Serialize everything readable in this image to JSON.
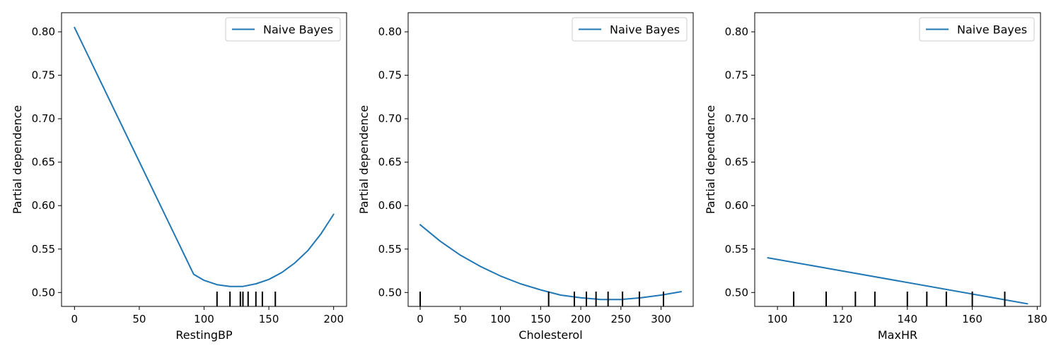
{
  "colors": {
    "series": "#1f77b4",
    "rug": "#000000",
    "axes": "#000000",
    "legend_border": "#cccccc"
  },
  "chart_data": [
    {
      "type": "line",
      "xlabel": "RestingBP",
      "ylabel": "Partial dependence",
      "xlim": [
        -10,
        210
      ],
      "ylim": [
        0.484,
        0.822
      ],
      "xticks": [
        0,
        50,
        100,
        150,
        200
      ],
      "yticks": [
        0.5,
        0.55,
        0.6,
        0.65,
        0.7,
        0.75,
        0.8
      ],
      "legend": "top-right",
      "series": [
        {
          "name": "Naive Bayes",
          "x": [
            0,
            92,
            100,
            110,
            120,
            130,
            140,
            150,
            160,
            170,
            180,
            190,
            200
          ],
          "y": [
            0.805,
            0.521,
            0.514,
            0.509,
            0.507,
            0.507,
            0.51,
            0.515,
            0.523,
            0.534,
            0.548,
            0.567,
            0.59
          ]
        }
      ],
      "rug": [
        110,
        120,
        128,
        130,
        134,
        140,
        145,
        155
      ]
    },
    {
      "type": "line",
      "xlabel": "Cholesterol",
      "ylabel": "Partial dependence",
      "xlim": [
        -15,
        340
      ],
      "ylim": [
        0.484,
        0.822
      ],
      "xticks": [
        0,
        50,
        100,
        150,
        200,
        250,
        300
      ],
      "yticks": [
        0.5,
        0.55,
        0.6,
        0.65,
        0.7,
        0.75,
        0.8
      ],
      "legend": "top-right",
      "series": [
        {
          "name": "Naive Bayes",
          "x": [
            0,
            25,
            50,
            75,
            100,
            125,
            150,
            175,
            200,
            225,
            250,
            275,
            300,
            325
          ],
          "y": [
            0.578,
            0.559,
            0.543,
            0.53,
            0.519,
            0.51,
            0.503,
            0.497,
            0.494,
            0.492,
            0.492,
            0.494,
            0.497,
            0.501
          ]
        }
      ],
      "rug": [
        0,
        160,
        192,
        207,
        219,
        234,
        252,
        273,
        303
      ]
    },
    {
      "type": "line",
      "xlabel": "MaxHR",
      "ylabel": "Partial dependence",
      "xlim": [
        93,
        181
      ],
      "ylim": [
        0.484,
        0.822
      ],
      "xticks": [
        100,
        120,
        140,
        160,
        180
      ],
      "yticks": [
        0.5,
        0.55,
        0.6,
        0.65,
        0.7,
        0.75,
        0.8
      ],
      "legend": "top-right",
      "series": [
        {
          "name": "Naive Bayes",
          "x": [
            97,
            177
          ],
          "y": [
            0.54,
            0.487
          ]
        }
      ],
      "rug": [
        105,
        115,
        124,
        130,
        140,
        146,
        152,
        160,
        170
      ]
    }
  ]
}
